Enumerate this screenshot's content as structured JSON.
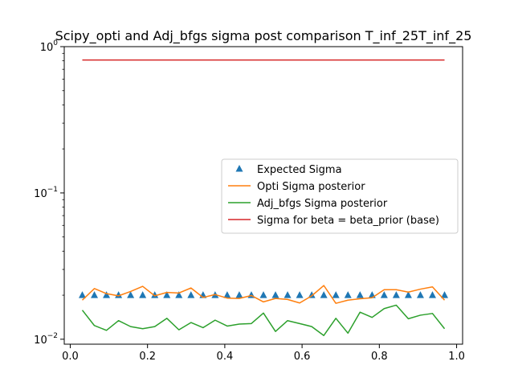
{
  "chart_data": {
    "type": "line",
    "title": "Scipy_opti and Adj_bfgs sigma post comparison T_inf_25T_inf_25",
    "xlabel": "",
    "ylabel": "",
    "xlim": [
      -0.0155,
      1.0155
    ],
    "ylim": [
      0.00925,
      1.0
    ],
    "yscale": "log",
    "grid": false,
    "legend_position": "center-right",
    "x_ticks": [
      {
        "value": 0.0,
        "label": "0.0"
      },
      {
        "value": 0.2,
        "label": "0.2"
      },
      {
        "value": 0.4,
        "label": "0.4"
      },
      {
        "value": 0.6,
        "label": "0.6"
      },
      {
        "value": 0.8,
        "label": "0.8"
      },
      {
        "value": 1.0,
        "label": "1.0"
      }
    ],
    "y_ticks": [
      {
        "value": 0.01,
        "base": "10",
        "exp": "−2"
      },
      {
        "value": 0.1,
        "base": "10",
        "exp": "−1"
      },
      {
        "value": 1.0,
        "base": "10",
        "exp": "0"
      }
    ],
    "x": [
      0.03125,
      0.0625,
      0.09375,
      0.125,
      0.15625,
      0.1875,
      0.21875,
      0.25,
      0.28125,
      0.3125,
      0.34375,
      0.375,
      0.40625,
      0.4375,
      0.46875,
      0.5,
      0.53125,
      0.5625,
      0.59375,
      0.625,
      0.65625,
      0.6875,
      0.71875,
      0.75,
      0.78125,
      0.8125,
      0.84375,
      0.875,
      0.90625,
      0.9375,
      0.96875
    ],
    "series": [
      {
        "name": "Expected Sigma",
        "kind": "markers",
        "marker": "triangle-up",
        "color": "#1f77b4",
        "values": [
          0.02,
          0.02,
          0.02,
          0.02,
          0.02,
          0.02,
          0.02,
          0.02,
          0.02,
          0.02,
          0.02,
          0.02,
          0.02,
          0.02,
          0.02,
          0.02,
          0.02,
          0.02,
          0.02,
          0.02,
          0.02,
          0.02,
          0.02,
          0.02,
          0.02,
          0.02,
          0.02,
          0.02,
          0.02,
          0.02,
          0.02
        ]
      },
      {
        "name": "Opti Sigma posterior",
        "kind": "line",
        "color": "#ff7f0e",
        "values": [
          0.0185,
          0.0222,
          0.0205,
          0.0198,
          0.0212,
          0.023,
          0.0198,
          0.0209,
          0.0207,
          0.0224,
          0.0193,
          0.0202,
          0.0191,
          0.019,
          0.0199,
          0.018,
          0.019,
          0.0187,
          0.0177,
          0.0198,
          0.0233,
          0.0176,
          0.0185,
          0.0189,
          0.0192,
          0.0218,
          0.0218,
          0.021,
          0.022,
          0.0228,
          0.0185
        ]
      },
      {
        "name": "Adj_bfgs Sigma posterior",
        "kind": "line",
        "color": "#2ca02c",
        "values": [
          0.0158,
          0.0124,
          0.0115,
          0.0134,
          0.0122,
          0.0118,
          0.0122,
          0.0139,
          0.0116,
          0.013,
          0.012,
          0.0135,
          0.0123,
          0.0127,
          0.0128,
          0.0151,
          0.0113,
          0.0134,
          0.0128,
          0.0122,
          0.0106,
          0.0139,
          0.011,
          0.0153,
          0.0141,
          0.0162,
          0.0171,
          0.0138,
          0.0146,
          0.015,
          0.0118
        ]
      },
      {
        "name": "Sigma for beta = beta_prior (base)",
        "kind": "line",
        "color": "#d62728",
        "values": [
          0.81,
          0.81,
          0.81,
          0.81,
          0.81,
          0.81,
          0.81,
          0.81,
          0.81,
          0.81,
          0.81,
          0.81,
          0.81,
          0.81,
          0.81,
          0.81,
          0.81,
          0.81,
          0.81,
          0.81,
          0.81,
          0.81,
          0.81,
          0.81,
          0.81,
          0.81,
          0.81,
          0.81,
          0.81,
          0.81,
          0.81
        ]
      }
    ]
  }
}
